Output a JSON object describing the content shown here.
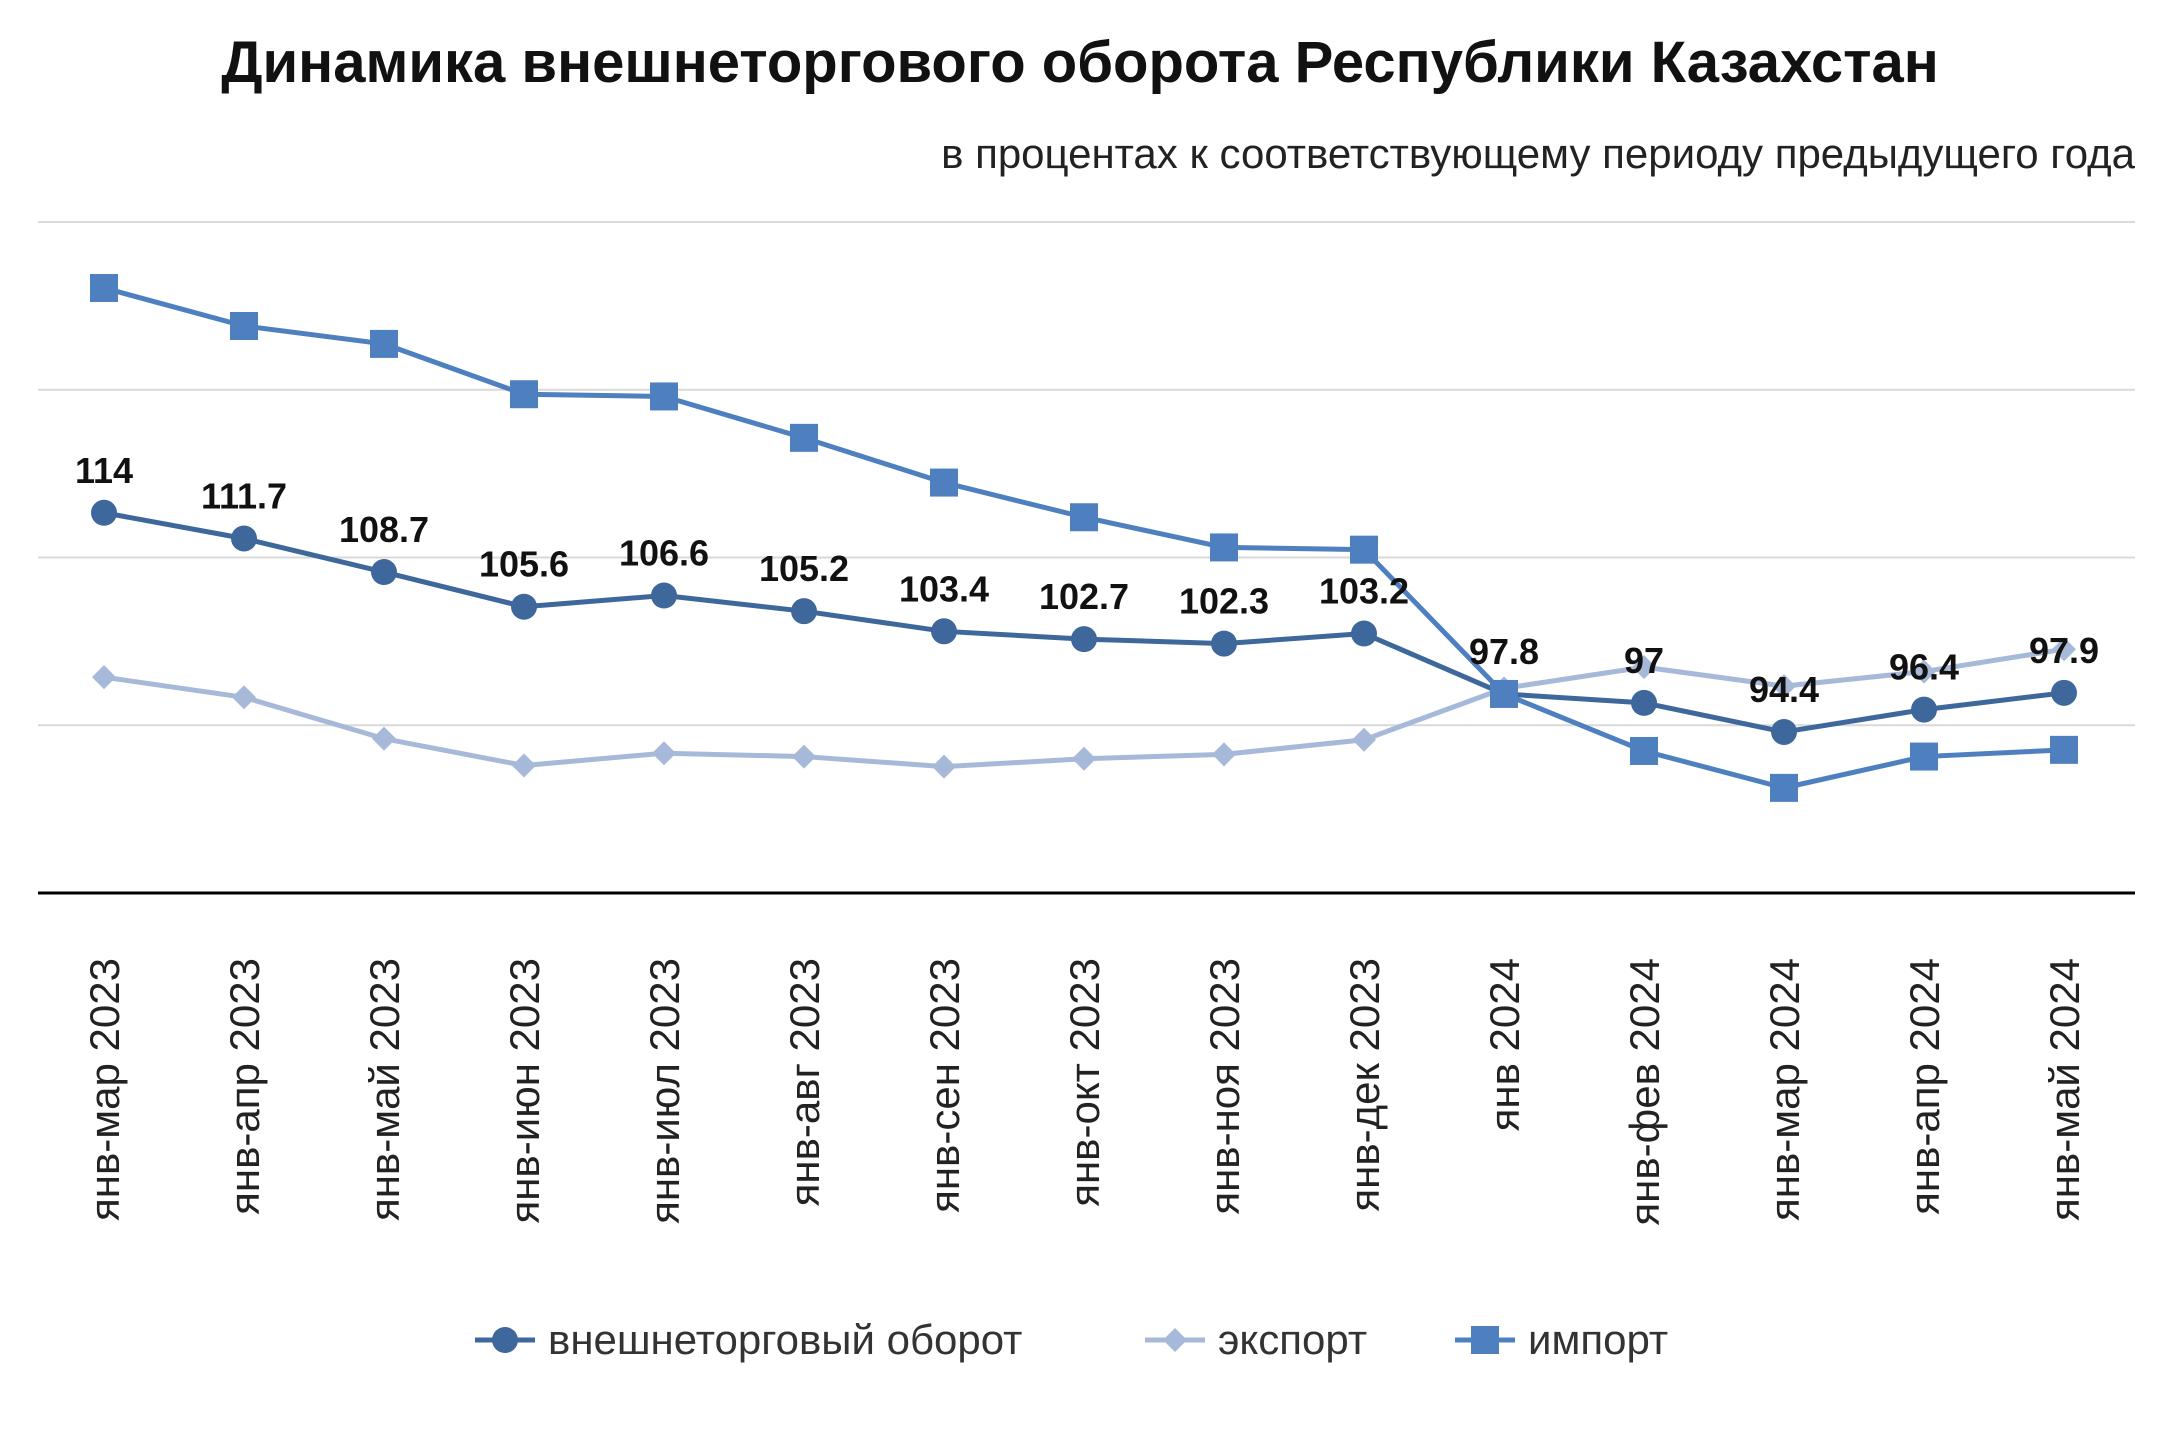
{
  "chart_data": {
    "type": "line",
    "title": "Динамика внешнеторгового оборота Республики Казахстан",
    "subtitle": "в процентах к соответствующему периоду предыдущего года",
    "categories": [
      "янв-мар 2023",
      "янв-апр 2023",
      "янв-май 2023",
      "янв-июн 2023",
      "янв-июл 2023",
      "янв-авг 2023",
      "янв-сен 2023",
      "янв-окт 2023",
      "янв-ноя 2023",
      "янв-дек 2023",
      "янв 2024",
      "янв-фев 2024",
      "янв-мар 2024",
      "янв-апр 2024",
      "янв-май 2024"
    ],
    "ylim": [
      80,
      140
    ],
    "grid": true,
    "legend_position": "bottom",
    "series": [
      {
        "name": "внешнеторговый оборот",
        "color": "#3e689b",
        "marker": "circle",
        "values": [
          114,
          111.7,
          108.7,
          105.6,
          106.6,
          105.2,
          103.4,
          102.7,
          102.3,
          103.2,
          97.8,
          97,
          94.4,
          96.4,
          97.9
        ],
        "labels": [
          "114",
          "111.7",
          "108.7",
          "105.6",
          "106.6",
          "105.2",
          "103.4",
          "102.7",
          "102.3",
          "103.2",
          "97.8",
          "97",
          "94.4",
          "96.4",
          "97.9"
        ]
      },
      {
        "name": "экспорт",
        "color": "#a7b9d9",
        "marker": "diamond",
        "values": [
          99.3,
          97.5,
          93.8,
          91.4,
          92.5,
          92.2,
          91.3,
          92.0,
          92.4,
          93.7,
          98.3,
          100.2,
          98.5,
          99.8,
          101.8
        ]
      },
      {
        "name": "импорт",
        "color": "#4e80c0",
        "marker": "square",
        "values": [
          134.1,
          130.7,
          129.1,
          124.6,
          124.4,
          120.7,
          116.7,
          113.6,
          110.9,
          110.7,
          97.8,
          92.7,
          89.4,
          92.2,
          92.8
        ]
      }
    ]
  }
}
